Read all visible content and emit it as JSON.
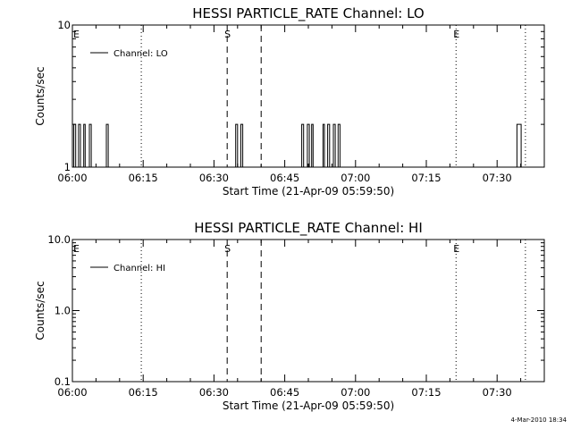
{
  "footer": {
    "timestamp": "4-Mar-2010 18:34"
  },
  "chart_data": [
    {
      "type": "line",
      "title": "HESSI PARTICLE_RATE Channel: LO",
      "xlabel": "Start Time (21-Apr-09 05:59:50)",
      "ylabel": "Counts/sec",
      "x_unit": "minutes after 06:00",
      "xlim": [
        0,
        100
      ],
      "ylim": [
        1,
        10
      ],
      "yscale": "log",
      "x_ticks": [
        {
          "x": 0,
          "label": "06:00"
        },
        {
          "x": 15,
          "label": "06:15"
        },
        {
          "x": 30,
          "label": "06:30"
        },
        {
          "x": 45,
          "label": "06:45"
        },
        {
          "x": 60,
          "label": "07:00"
        },
        {
          "x": 75,
          "label": "07:15"
        },
        {
          "x": 90,
          "label": "07:30"
        }
      ],
      "y_ticks": [
        {
          "y": 1,
          "label": "1"
        },
        {
          "y": 10,
          "label": "10"
        }
      ],
      "legend": {
        "position": "top-left",
        "label": "Channel: LO"
      },
      "series": [
        {
          "name": "Channel: LO",
          "points": [
            [
              0,
              1
            ],
            [
              0.3,
              1
            ],
            [
              0.3,
              2
            ],
            [
              0.7,
              2
            ],
            [
              0.7,
              1
            ],
            [
              1.3,
              1
            ],
            [
              1.3,
              2
            ],
            [
              1.7,
              2
            ],
            [
              1.7,
              1
            ],
            [
              2.4,
              1
            ],
            [
              2.4,
              2
            ],
            [
              2.7,
              2
            ],
            [
              2.7,
              1
            ],
            [
              3.6,
              1
            ],
            [
              3.6,
              2
            ],
            [
              4.0,
              2
            ],
            [
              4.0,
              1
            ],
            [
              7.2,
              1
            ],
            [
              7.2,
              2
            ],
            [
              7.6,
              2
            ],
            [
              7.6,
              1
            ],
            [
              34.6,
              1
            ],
            [
              34.6,
              2
            ],
            [
              35.0,
              2
            ],
            [
              35.0,
              1
            ],
            [
              35.7,
              1
            ],
            [
              35.7,
              2
            ],
            [
              36.1,
              2
            ],
            [
              36.1,
              1
            ],
            [
              48.6,
              1
            ],
            [
              48.6,
              2
            ],
            [
              49.0,
              2
            ],
            [
              49.0,
              1
            ],
            [
              49.8,
              1
            ],
            [
              49.8,
              2
            ],
            [
              50.2,
              2
            ],
            [
              50.2,
              1
            ],
            [
              50.7,
              1
            ],
            [
              50.7,
              2
            ],
            [
              51.0,
              2
            ],
            [
              51.0,
              1
            ],
            [
              53.1,
              1
            ],
            [
              53.1,
              2
            ],
            [
              53.4,
              2
            ],
            [
              53.4,
              1
            ],
            [
              54.1,
              1
            ],
            [
              54.1,
              2
            ],
            [
              54.5,
              2
            ],
            [
              54.5,
              1
            ],
            [
              55.3,
              1
            ],
            [
              55.3,
              2
            ],
            [
              55.7,
              2
            ],
            [
              55.7,
              1
            ],
            [
              56.3,
              1
            ],
            [
              56.3,
              2
            ],
            [
              56.7,
              2
            ],
            [
              56.7,
              1
            ],
            [
              94.2,
              1
            ],
            [
              94.2,
              2
            ],
            [
              95.1,
              2
            ],
            [
              95.1,
              1
            ],
            [
              100,
              1
            ]
          ]
        }
      ],
      "markers": [
        {
          "x": 0,
          "style": "dotted",
          "label": "E"
        },
        {
          "x": 14.6,
          "style": "dotted",
          "label": ""
        },
        {
          "x": 32.8,
          "style": "dashed",
          "label": "S"
        },
        {
          "x": 40.0,
          "style": "dashed",
          "label": ""
        },
        {
          "x": 81.3,
          "style": "dotted",
          "label": "E"
        },
        {
          "x": 96.0,
          "style": "dotted",
          "label": ""
        }
      ]
    },
    {
      "type": "line",
      "title": "HESSI PARTICLE_RATE Channel: HI",
      "xlabel": "Start Time (21-Apr-09 05:59:50)",
      "ylabel": "Counts/sec",
      "x_unit": "minutes after 06:00",
      "xlim": [
        0,
        100
      ],
      "ylim": [
        0.1,
        10
      ],
      "yscale": "log",
      "x_ticks": [
        {
          "x": 0,
          "label": "06:00"
        },
        {
          "x": 15,
          "label": "06:15"
        },
        {
          "x": 30,
          "label": "06:30"
        },
        {
          "x": 45,
          "label": "06:45"
        },
        {
          "x": 60,
          "label": "07:00"
        },
        {
          "x": 75,
          "label": "07:15"
        },
        {
          "x": 90,
          "label": "07:30"
        }
      ],
      "y_ticks": [
        {
          "y": 0.1,
          "label": "0.1"
        },
        {
          "y": 1,
          "label": "1.0"
        },
        {
          "y": 10,
          "label": "10.0"
        }
      ],
      "legend": {
        "position": "top-left",
        "label": "Channel: HI"
      },
      "series": [
        {
          "name": "Channel: HI",
          "points": []
        }
      ],
      "markers": [
        {
          "x": 0,
          "style": "dotted",
          "label": "E"
        },
        {
          "x": 14.6,
          "style": "dotted",
          "label": ""
        },
        {
          "x": 32.8,
          "style": "dashed",
          "label": "S"
        },
        {
          "x": 40.0,
          "style": "dashed",
          "label": ""
        },
        {
          "x": 81.3,
          "style": "dotted",
          "label": "E"
        },
        {
          "x": 96.0,
          "style": "dotted",
          "label": ""
        }
      ]
    }
  ]
}
